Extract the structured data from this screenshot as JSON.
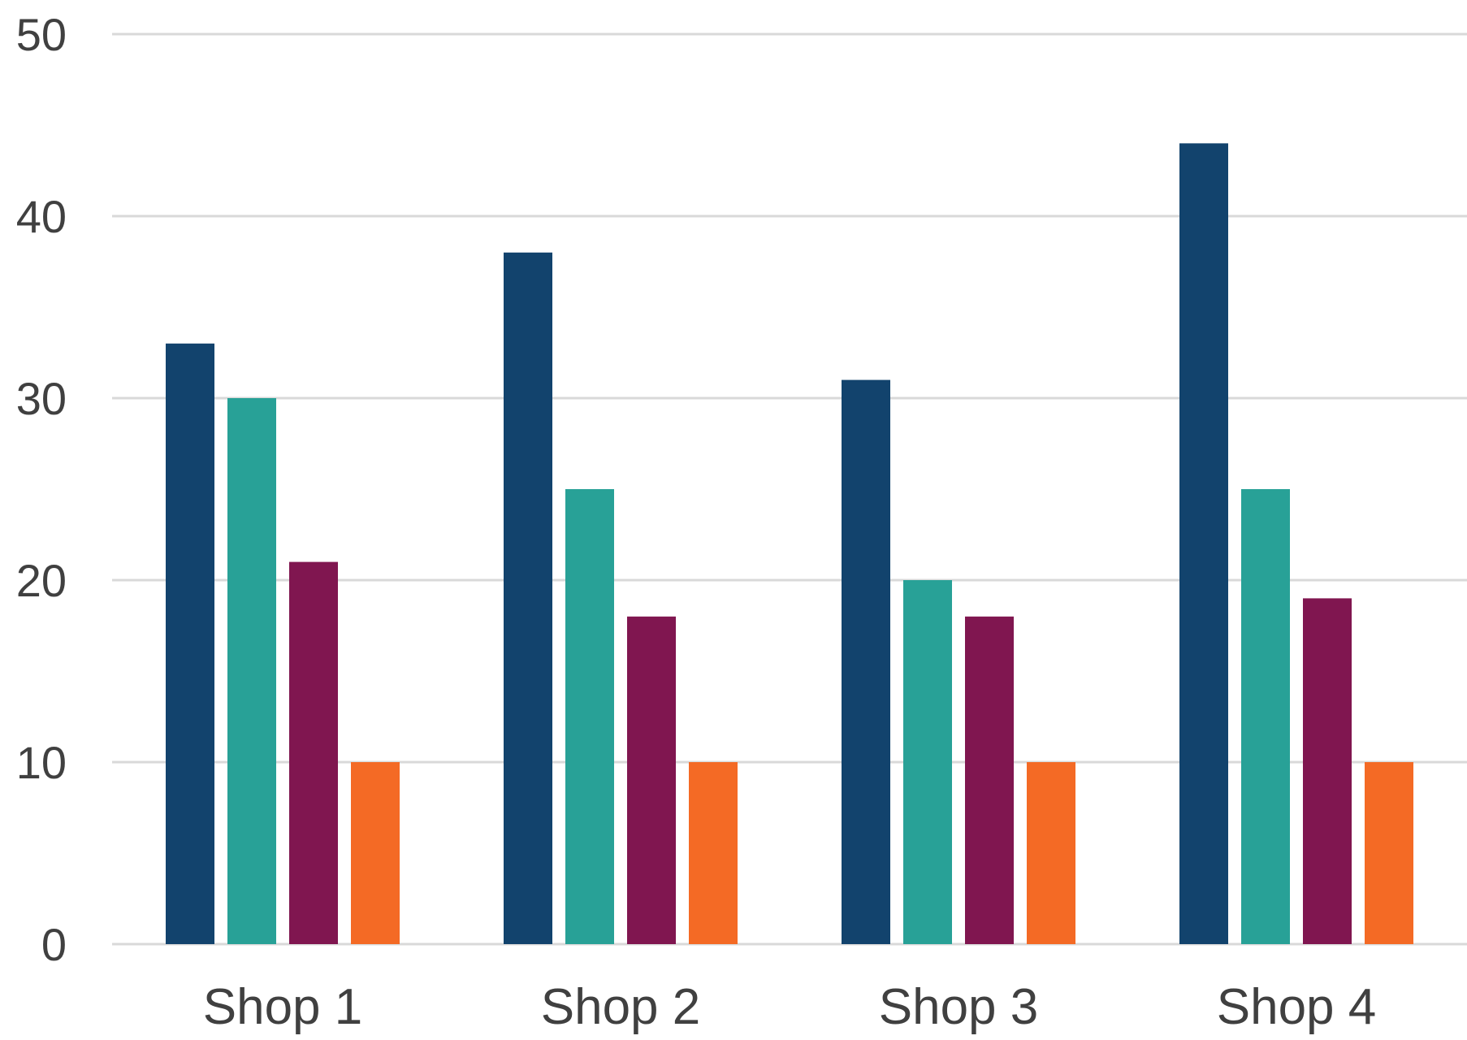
{
  "chart_data": {
    "type": "bar",
    "title": "",
    "xlabel": "",
    "ylabel": "",
    "categories": [
      "Shop 1",
      "Shop 2",
      "Shop 3",
      "Shop 4"
    ],
    "series": [
      {
        "values": [
          33,
          38,
          31,
          44
        ],
        "color": "#12436D"
      },
      {
        "values": [
          30,
          25,
          20,
          25
        ],
        "color": "#28A197"
      },
      {
        "values": [
          21,
          18,
          18,
          19
        ],
        "color": "#801650"
      },
      {
        "values": [
          10,
          10,
          10,
          10
        ],
        "color": "#F46A25"
      }
    ],
    "ylim": [
      0,
      50
    ],
    "yticks": [
      "0",
      "10",
      "20",
      "30",
      "40",
      "50"
    ],
    "grid": true,
    "legend": "none",
    "gridline_color": "#D9D9D9",
    "text_color": "#404040"
  }
}
